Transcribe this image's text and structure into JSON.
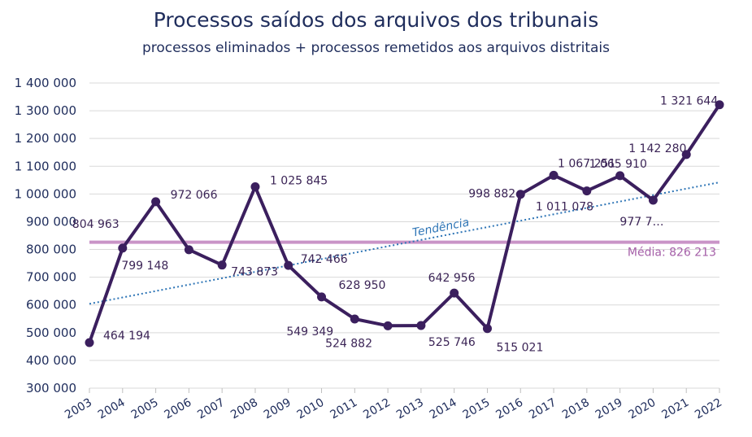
{
  "chart_data": {
    "type": "line",
    "title": "Processos saídos dos arquivos dos tribunais",
    "subtitle": "processos eliminados + processos remetidos aos arquivos distritais",
    "categories": [
      "2003",
      "2004",
      "2005",
      "2006",
      "2007",
      "2008",
      "2009",
      "2010",
      "2011",
      "2012",
      "2013",
      "2014",
      "2015",
      "2016",
      "2017",
      "2018",
      "2019",
      "2020",
      "2021",
      "2022"
    ],
    "series": [
      {
        "values": [
          464194,
          804963,
          972066,
          799148,
          743873,
          1025845,
          742466,
          628950,
          549349,
          524882,
          525746,
          642956,
          515021,
          998882,
          1067251,
          1011078,
          1065910,
          977700,
          1142280,
          1321644
        ],
        "data_labels": [
          "464 194",
          "804 963",
          "972 066",
          "799 148",
          "743 873",
          "1 025 845",
          "742 466",
          "628 950",
          "549 349",
          "524 882",
          "525 746",
          "642 956",
          "515 021",
          "998 882",
          "1 067 251",
          "1 011 078",
          "1 065 910",
          "977 7…",
          "1 142 280",
          "1 321 644"
        ],
        "color": "#3b1f5e"
      }
    ],
    "mean": {
      "value": 826213,
      "label": "Média: 826 213",
      "color": "#c994c7"
    },
    "trend": {
      "label": "Tendência",
      "start": 604000,
      "end": 1042000,
      "color": "#2e75b6"
    },
    "ylim": [
      300000,
      1400000
    ],
    "yticks": [
      300000,
      400000,
      500000,
      600000,
      700000,
      800000,
      900000,
      1000000,
      1100000,
      1200000,
      1300000,
      1400000
    ],
    "ytick_labels": [
      "300 000",
      "400 000",
      "500 000",
      "600 000",
      "700 000",
      "800 000",
      "900 000",
      "1 000 000",
      "1 100 000",
      "1 200 000",
      "1 300 000",
      "1 400 000"
    ],
    "grid": true,
    "legend": "none"
  }
}
